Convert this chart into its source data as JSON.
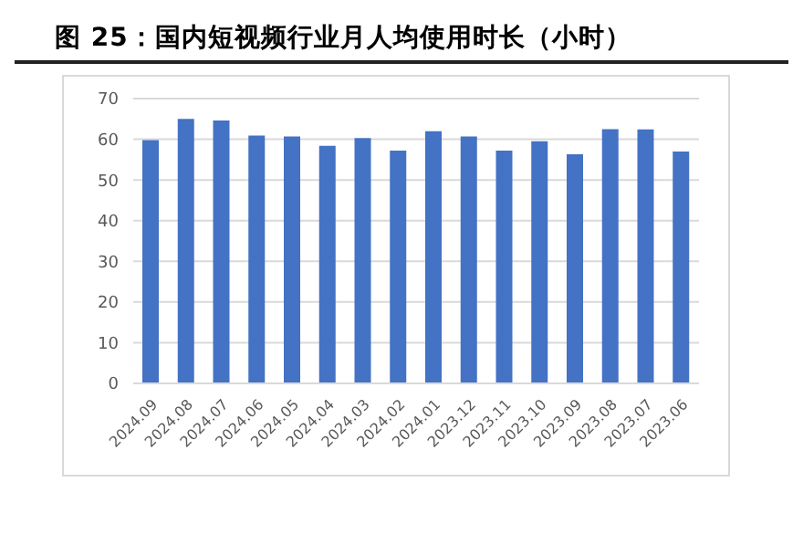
{
  "chart_data": {
    "type": "bar",
    "title": "图 25：国内短视频行业月人均使用时长（小时）",
    "categories": [
      "2024.09",
      "2024.08",
      "2024.07",
      "2024.06",
      "2024.05",
      "2024.04",
      "2024.03",
      "2024.02",
      "2024.01",
      "2023.12",
      "2023.11",
      "2023.10",
      "2023.09",
      "2023.08",
      "2023.07",
      "2023.06"
    ],
    "values": [
      59.8,
      65.0,
      64.6,
      60.9,
      60.7,
      58.4,
      60.3,
      57.2,
      62.0,
      60.7,
      57.2,
      59.5,
      56.3,
      62.5,
      62.4,
      57.0
    ],
    "color": "#4472c4",
    "ylim": [
      0,
      70
    ],
    "yticks": [
      0,
      10,
      20,
      30,
      40,
      50,
      60,
      70
    ],
    "grid": "y"
  }
}
